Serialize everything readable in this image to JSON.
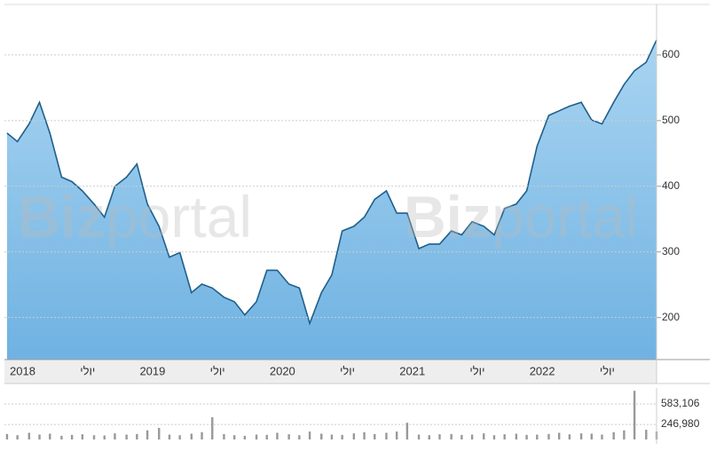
{
  "chart_data": [
    {
      "type": "area",
      "watermark": {
        "bold": "Biz",
        "light": "portal"
      },
      "x": [
        2017.88,
        2017.96,
        2018.05,
        2018.13,
        2018.21,
        2018.3,
        2018.38,
        2018.46,
        2018.55,
        2018.63,
        2018.71,
        2018.8,
        2018.88,
        2018.96,
        2019.05,
        2019.13,
        2019.21,
        2019.3,
        2019.38,
        2019.46,
        2019.55,
        2019.63,
        2019.71,
        2019.8,
        2019.88,
        2019.96,
        2020.05,
        2020.13,
        2020.21,
        2020.3,
        2020.38,
        2020.46,
        2020.55,
        2020.63,
        2020.71,
        2020.8,
        2020.88,
        2020.96,
        2021.05,
        2021.13,
        2021.21,
        2021.3,
        2021.38,
        2021.46,
        2021.55,
        2021.63,
        2021.71,
        2021.8,
        2021.88,
        2021.96,
        2022.05,
        2022.13,
        2022.21,
        2022.3,
        2022.38,
        2022.46,
        2022.55,
        2022.63,
        2022.71,
        2022.8,
        2022.88
      ],
      "values": [
        481,
        468,
        495,
        528,
        481,
        414,
        407,
        393,
        373,
        353,
        400,
        414,
        434,
        373,
        339,
        292,
        299,
        238,
        251,
        245,
        231,
        224,
        204,
        224,
        272,
        272,
        251,
        245,
        191,
        238,
        265,
        332,
        339,
        353,
        380,
        393,
        359,
        359,
        305,
        312,
        312,
        332,
        326,
        346,
        339,
        326,
        366,
        373,
        393,
        461,
        508,
        515,
        522,
        528,
        501,
        495,
        528,
        555,
        576,
        589,
        623
      ],
      "color": "#1f5f8b",
      "fill": "#8cc4ea",
      "xlim": [
        2017.86,
        2022.88
      ],
      "xticks": [
        2018,
        {
          "value": 2018.5,
          "label": "יולי"
        },
        2019,
        {
          "value": 2019.5,
          "label": "יולי"
        },
        2020,
        {
          "value": 2020.5,
          "label": "יולי"
        },
        2021,
        {
          "value": 2021.5,
          "label": "יולי"
        },
        2022,
        {
          "value": 2022.5,
          "label": "יולי"
        }
      ],
      "ylim": [
        136,
        677
      ],
      "yticks": [
        200,
        300,
        400,
        500,
        600
      ],
      "grid": true
    },
    {
      "type": "bar",
      "x": [
        2017.88,
        2017.96,
        2018.05,
        2018.13,
        2018.21,
        2018.3,
        2018.38,
        2018.46,
        2018.55,
        2018.63,
        2018.71,
        2018.8,
        2018.88,
        2018.96,
        2019.05,
        2019.13,
        2019.21,
        2019.3,
        2019.38,
        2019.46,
        2019.55,
        2019.63,
        2019.71,
        2019.8,
        2019.88,
        2019.96,
        2020.05,
        2020.13,
        2020.21,
        2020.3,
        2020.38,
        2020.46,
        2020.55,
        2020.63,
        2020.71,
        2020.8,
        2020.88,
        2020.96,
        2021.05,
        2021.13,
        2021.21,
        2021.3,
        2021.38,
        2021.46,
        2021.55,
        2021.63,
        2021.71,
        2021.8,
        2021.88,
        2021.96,
        2022.05,
        2022.13,
        2022.21,
        2022.3,
        2022.38,
        2022.46,
        2022.55,
        2022.63,
        2022.71,
        2022.8,
        2022.88
      ],
      "values": [
        90000,
        70000,
        110000,
        80000,
        95000,
        60000,
        75000,
        85000,
        70000,
        65000,
        100000,
        80000,
        90000,
        150000,
        190000,
        80000,
        70000,
        95000,
        120000,
        365000,
        90000,
        70000,
        60000,
        80000,
        75000,
        110000,
        85000,
        70000,
        130000,
        95000,
        80000,
        75000,
        100000,
        120000,
        90000,
        110000,
        130000,
        275000,
        80000,
        70000,
        85000,
        90000,
        75000,
        80000,
        100000,
        70000,
        85000,
        95000,
        75000,
        80000,
        90000,
        110000,
        85000,
        100000,
        95000,
        80000,
        120000,
        150000,
        800000,
        160000,
        130000
      ],
      "color": "#999999",
      "ylim": [
        0,
        846000
      ],
      "yticks": [
        {
          "value": 583106,
          "label": "583,106"
        },
        {
          "value": 246980,
          "label": "246,980"
        }
      ],
      "grid": true
    }
  ]
}
